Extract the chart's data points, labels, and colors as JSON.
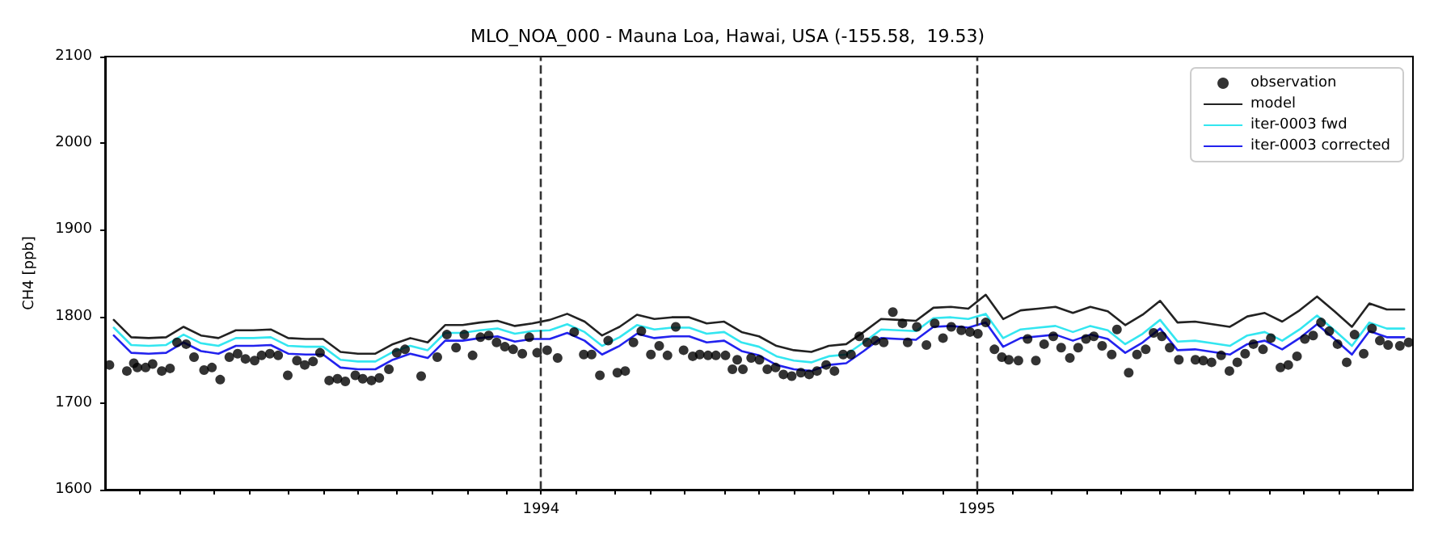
{
  "chart_data": {
    "type": "line",
    "title": "MLO_NOA_000 - Mauna Loa, Hawai, USA (-155.58,  19.53)",
    "ylabel": "CH4 [ppb]",
    "xlim": [
      1993.0,
      1996.0
    ],
    "ylim": [
      1600,
      2100
    ],
    "yticks": [
      1600,
      1700,
      1800,
      1900,
      2000,
      2100
    ],
    "xticks": [
      {
        "value": 1993.08,
        "label": null
      },
      {
        "value": 1993.17,
        "label": null
      },
      {
        "value": 1993.25,
        "label": null
      },
      {
        "value": 1993.33,
        "label": null
      },
      {
        "value": 1993.42,
        "label": null
      },
      {
        "value": 1993.5,
        "label": null
      },
      {
        "value": 1993.58,
        "label": null
      },
      {
        "value": 1993.67,
        "label": null
      },
      {
        "value": 1993.75,
        "label": null
      },
      {
        "value": 1993.83,
        "label": null
      },
      {
        "value": 1993.92,
        "label": null
      },
      1994,
      {
        "value": 1994.08,
        "label": null
      },
      {
        "value": 1994.17,
        "label": null
      },
      {
        "value": 1994.25,
        "label": null
      },
      {
        "value": 1994.33,
        "label": null
      },
      {
        "value": 1994.42,
        "label": null
      },
      {
        "value": 1994.5,
        "label": null
      },
      {
        "value": 1994.58,
        "label": null
      },
      {
        "value": 1994.67,
        "label": null
      },
      {
        "value": 1994.75,
        "label": null
      },
      {
        "value": 1994.83,
        "label": null
      },
      {
        "value": 1994.92,
        "label": null
      },
      1995,
      {
        "value": 1995.08,
        "label": null
      },
      {
        "value": 1995.17,
        "label": null
      },
      {
        "value": 1995.25,
        "label": null
      },
      {
        "value": 1995.33,
        "label": null
      },
      {
        "value": 1995.42,
        "label": null
      },
      {
        "value": 1995.5,
        "label": null
      },
      {
        "value": 1995.58,
        "label": null
      },
      {
        "value": 1995.67,
        "label": null
      },
      {
        "value": 1995.75,
        "label": null
      },
      {
        "value": 1995.83,
        "label": null
      },
      {
        "value": 1995.92,
        "label": null
      }
    ],
    "x": [
      1993.02,
      1993.06,
      1993.1,
      1993.14,
      1993.18,
      1993.22,
      1993.26,
      1993.3,
      1993.34,
      1993.38,
      1993.42,
      1993.46,
      1993.5,
      1993.54,
      1993.58,
      1993.62,
      1993.66,
      1993.7,
      1993.74,
      1993.78,
      1993.82,
      1993.86,
      1993.9,
      1993.94,
      1993.98,
      1994.02,
      1994.06,
      1994.1,
      1994.14,
      1994.18,
      1994.22,
      1994.26,
      1994.3,
      1994.34,
      1994.38,
      1994.42,
      1994.46,
      1994.5,
      1994.54,
      1994.58,
      1994.62,
      1994.66,
      1994.7,
      1994.74,
      1994.78,
      1994.82,
      1994.86,
      1994.9,
      1994.94,
      1994.98,
      1995.02,
      1995.06,
      1995.1,
      1995.14,
      1995.18,
      1995.22,
      1995.26,
      1995.3,
      1995.34,
      1995.38,
      1995.42,
      1995.46,
      1995.5,
      1995.54,
      1995.58,
      1995.62,
      1995.66,
      1995.7,
      1995.74,
      1995.78,
      1995.82,
      1995.86,
      1995.9,
      1995.94,
      1995.98
    ],
    "series": [
      {
        "name": "observation",
        "type": "scatter",
        "marker": "circle",
        "color": "#000000",
        "x": [
          1993.01,
          1993.05,
          1993.066,
          1993.074,
          1993.093,
          1993.109,
          1993.13,
          1993.149,
          1993.165,
          1993.186,
          1993.204,
          1993.227,
          1993.245,
          1993.264,
          1993.285,
          1993.304,
          1993.322,
          1993.343,
          1993.359,
          1993.378,
          1993.397,
          1993.419,
          1993.44,
          1993.458,
          1993.477,
          1993.493,
          1993.514,
          1993.533,
          1993.551,
          1993.574,
          1993.591,
          1993.611,
          1993.629,
          1993.651,
          1993.669,
          1993.688,
          1993.725,
          1993.762,
          1993.784,
          1993.805,
          1993.824,
          1993.843,
          1993.861,
          1993.88,
          1993.898,
          1993.917,
          1993.936,
          1993.957,
          1993.973,
          1993.991,
          1994.014,
          1994.038,
          1994.076,
          1994.098,
          1994.116,
          1994.135,
          1994.154,
          1994.175,
          1994.193,
          1994.212,
          1994.23,
          1994.252,
          1994.271,
          1994.29,
          1994.309,
          1994.327,
          1994.348,
          1994.364,
          1994.383,
          1994.401,
          1994.423,
          1994.439,
          1994.45,
          1994.463,
          1994.482,
          1994.501,
          1994.519,
          1994.538,
          1994.556,
          1994.575,
          1994.596,
          1994.615,
          1994.633,
          1994.654,
          1994.673,
          1994.693,
          1994.711,
          1994.73,
          1994.748,
          1994.767,
          1994.786,
          1994.807,
          1994.829,
          1994.841,
          1994.862,
          1994.884,
          1994.903,
          1994.922,
          1994.941,
          1994.964,
          1994.984,
          1995.002,
          1995.02,
          1995.04,
          1995.057,
          1995.073,
          1995.095,
          1995.116,
          1995.135,
          1995.154,
          1995.175,
          1995.193,
          1995.213,
          1995.232,
          1995.25,
          1995.268,
          1995.287,
          1995.309,
          1995.321,
          1995.348,
          1995.367,
          1995.387,
          1995.405,
          1995.424,
          1995.442,
          1995.463,
          1995.501,
          1995.519,
          1995.538,
          1995.56,
          1995.579,
          1995.597,
          1995.615,
          1995.634,
          1995.656,
          1995.674,
          1995.696,
          1995.714,
          1995.734,
          1995.752,
          1995.771,
          1995.789,
          1995.808,
          1995.827,
          1995.848,
          1995.866,
          1995.887,
          1995.906,
          1995.924,
          1995.943,
          1995.97,
          1995.99
        ],
        "values": [
          1744,
          1737,
          1746,
          1741,
          1741,
          1745,
          1737,
          1740,
          1770,
          1768,
          1753,
          1738,
          1741,
          1727,
          1753,
          1757,
          1751,
          1749,
          1755,
          1757,
          1755,
          1732,
          1749,
          1744,
          1748,
          1758,
          1726,
          1728,
          1725,
          1732,
          1728,
          1726,
          1729,
          1739,
          1758,
          1762,
          1731,
          1753,
          1779,
          1764,
          1779,
          1755,
          1776,
          1778,
          1770,
          1765,
          1762,
          1757,
          1776,
          1758,
          1761,
          1752,
          1782,
          1756,
          1756,
          1732,
          1772,
          1735,
          1737,
          1770,
          1783,
          1756,
          1766,
          1755,
          1788,
          1761,
          1754,
          1756,
          1755,
          1755,
          1755,
          1739,
          1750,
          1739,
          1752,
          1750,
          1739,
          1741,
          1733,
          1731,
          1735,
          1733,
          1737,
          1744,
          1737,
          1756,
          1756,
          1777,
          1770,
          1772,
          1770,
          1805,
          1792,
          1770,
          1788,
          1767,
          1792,
          1775,
          1788,
          1784,
          1782,
          1780,
          1793,
          1762,
          1753,
          1750,
          1749,
          1774,
          1749,
          1768,
          1777,
          1764,
          1752,
          1764,
          1774,
          1777,
          1766,
          1756,
          1785,
          1735,
          1756,
          1762,
          1781,
          1777,
          1764,
          1750,
          1750,
          1749,
          1747,
          1755,
          1737,
          1747,
          1757,
          1768,
          1762,
          1775,
          1741,
          1744,
          1754,
          1774,
          1778,
          1793,
          1783,
          1768,
          1747,
          1779,
          1757,
          1786,
          1772,
          1767,
          1766,
          1770
        ]
      },
      {
        "name": "model",
        "color": "#222222",
        "values": [
          1796,
          1776,
          1775,
          1776,
          1788,
          1778,
          1775,
          1784,
          1784,
          1785,
          1775,
          1774,
          1774,
          1759,
          1757,
          1757,
          1768,
          1775,
          1770,
          1790,
          1790,
          1793,
          1795,
          1789,
          1792,
          1796,
          1803,
          1794,
          1778,
          1788,
          1802,
          1797,
          1799,
          1799,
          1792,
          1794,
          1782,
          1777,
          1766,
          1761,
          1759,
          1766,
          1768,
          1782,
          1797,
          1796,
          1795,
          1810,
          1811,
          1809,
          1825,
          1797,
          1807,
          1809,
          1811,
          1804,
          1811,
          1806,
          1790,
          1802,
          1818,
          1793,
          1794,
          1791,
          1788,
          1800,
          1804,
          1794,
          1807,
          1823,
          1806,
          1788,
          1815,
          1808,
          1808
        ]
      },
      {
        "name": "iter-0003 fwd",
        "color": "#33e6f0",
        "values": [
          1787,
          1767,
          1766,
          1767,
          1779,
          1769,
          1766,
          1775,
          1775,
          1776,
          1766,
          1765,
          1765,
          1750,
          1748,
          1748,
          1759,
          1766,
          1761,
          1781,
          1781,
          1784,
          1786,
          1780,
          1783,
          1784,
          1791,
          1782,
          1766,
          1776,
          1790,
          1785,
          1787,
          1787,
          1780,
          1782,
          1770,
          1765,
          1754,
          1749,
          1747,
          1754,
          1756,
          1770,
          1785,
          1784,
          1783,
          1798,
          1799,
          1797,
          1803,
          1775,
          1785,
          1787,
          1789,
          1782,
          1789,
          1784,
          1768,
          1780,
          1796,
          1771,
          1772,
          1769,
          1766,
          1778,
          1782,
          1772,
          1785,
          1801,
          1784,
          1766,
          1793,
          1786,
          1786
        ]
      },
      {
        "name": "iter-0003 corrected",
        "color": "#2222ee",
        "values": [
          1778,
          1758,
          1757,
          1758,
          1770,
          1760,
          1757,
          1766,
          1766,
          1767,
          1757,
          1756,
          1756,
          1741,
          1739,
          1739,
          1750,
          1757,
          1752,
          1772,
          1772,
          1775,
          1777,
          1771,
          1774,
          1774,
          1781,
          1772,
          1756,
          1766,
          1780,
          1775,
          1777,
          1777,
          1770,
          1772,
          1760,
          1755,
          1744,
          1739,
          1737,
          1744,
          1746,
          1760,
          1775,
          1774,
          1773,
          1788,
          1789,
          1787,
          1793,
          1765,
          1775,
          1777,
          1779,
          1772,
          1779,
          1774,
          1758,
          1770,
          1786,
          1761,
          1762,
          1759,
          1756,
          1768,
          1772,
          1762,
          1775,
          1791,
          1774,
          1756,
          1783,
          1776,
          1776
        ]
      }
    ],
    "ref_lines": [
      {
        "axis": "x",
        "value": 1994,
        "color": "#333333",
        "line_style": "dashed"
      },
      {
        "axis": "x",
        "value": 1995,
        "color": "#333333",
        "line_style": "dashed"
      }
    ],
    "legend": "top right",
    "grid": false,
    "marker": "none",
    "line_style": "solid"
  }
}
